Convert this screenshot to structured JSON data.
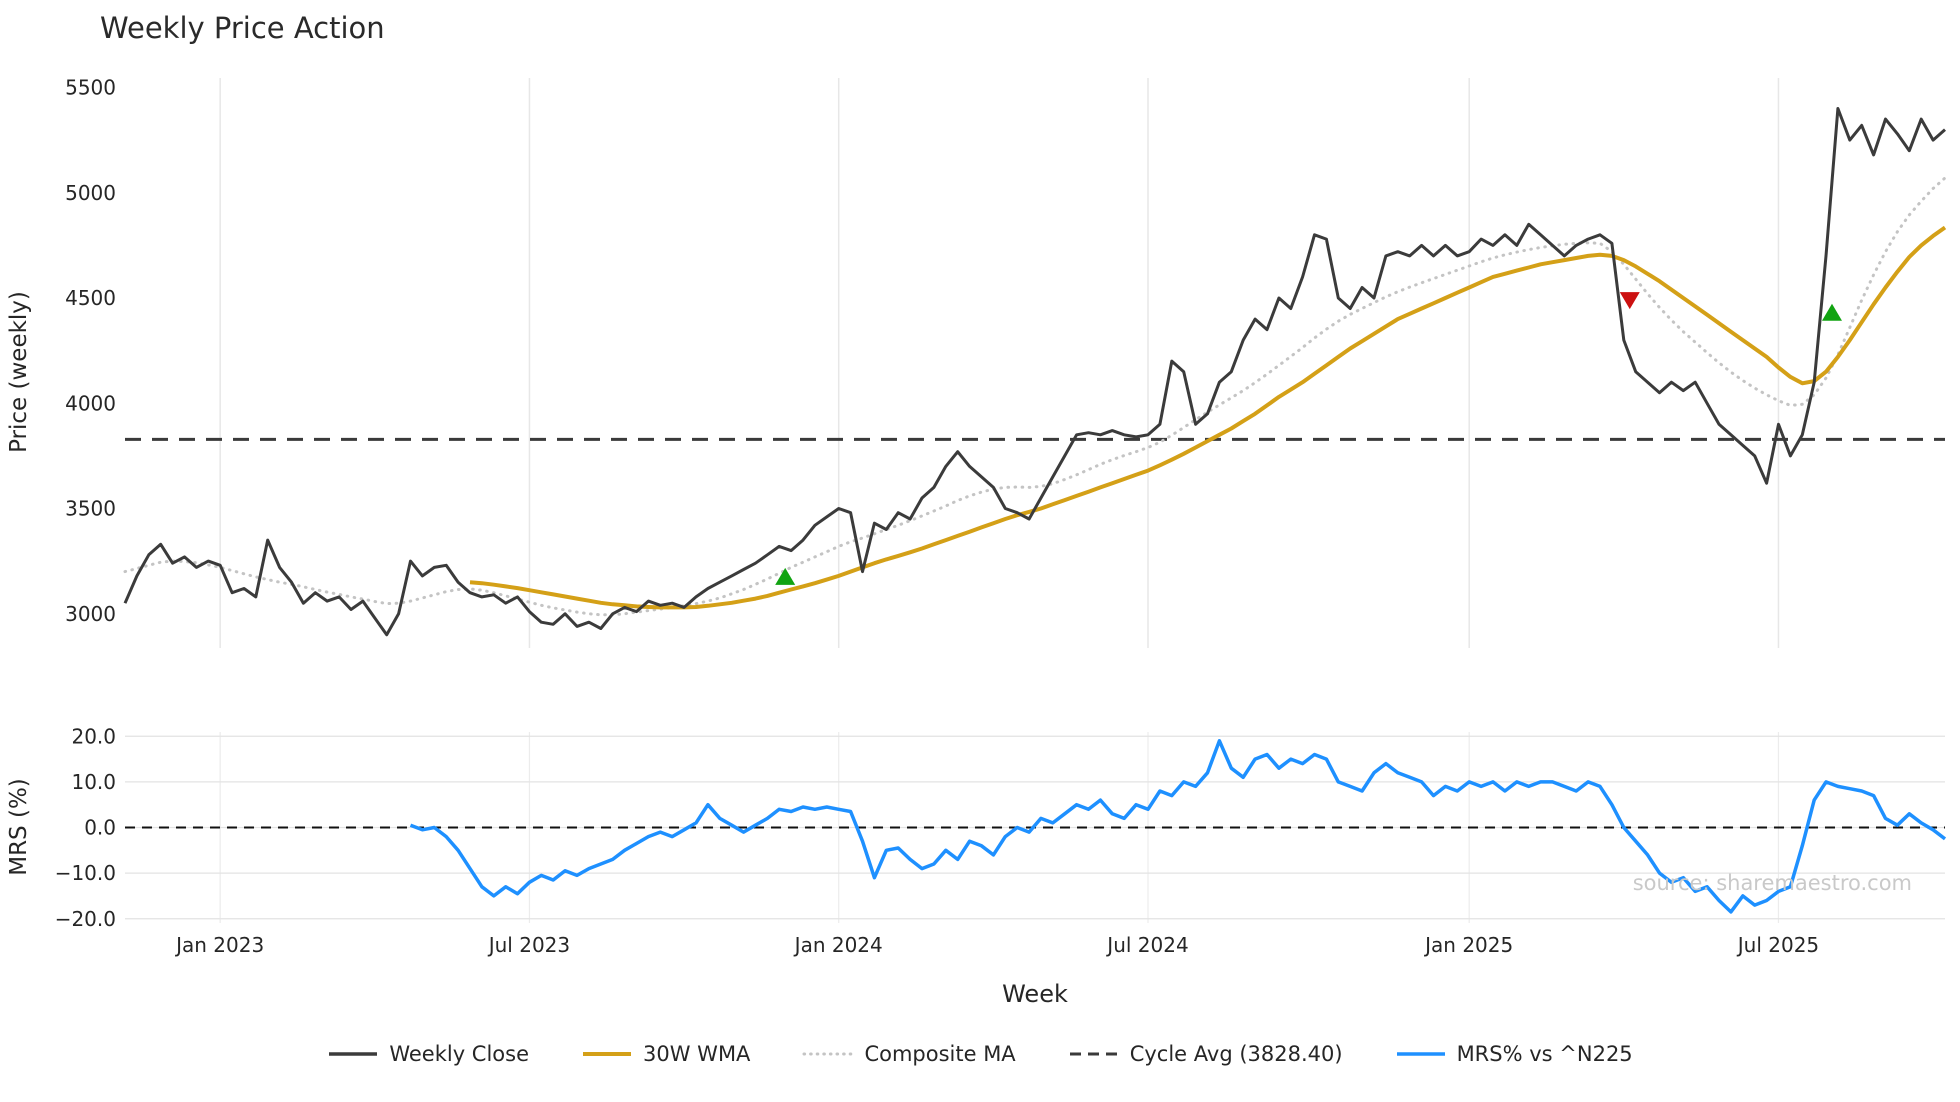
{
  "title": "Weekly Price Action",
  "watermark": "source: sharemaestro.com",
  "axes": {
    "price_label": "Price (weekly)",
    "mrs_label": "MRS (%)",
    "x_label": "Week"
  },
  "legend": {
    "items": [
      {
        "label": "Weekly Close",
        "color": "#3b3b3b",
        "dash": "solid",
        "width": 3.5
      },
      {
        "label": "30W WMA",
        "color": "#d4a017",
        "dash": "solid",
        "width": 4
      },
      {
        "label": "Composite MA",
        "color": "#c4c4c4",
        "dash": "dotted",
        "width": 3
      },
      {
        "label": "Cycle Avg (3828.40)",
        "color": "#3a3a3a",
        "dash": "dashed",
        "width": 3
      },
      {
        "label": "MRS% vs ^N225",
        "color": "#1e90ff",
        "dash": "solid",
        "width": 3.5
      }
    ]
  },
  "chart_data": {
    "type": "line",
    "title": "Weekly Price Action",
    "xlabel": "Week",
    "x_unit": "week_index",
    "x_range_weeks": [
      0,
      153
    ],
    "grid": true,
    "legend_position": "bottom-center",
    "panels": [
      {
        "id": "price",
        "ylabel": "Price (weekly)",
        "ylim": [
          2900,
          5500
        ],
        "yticks": [
          5500,
          5000,
          4500,
          4000,
          3500,
          3000
        ]
      },
      {
        "id": "mrs",
        "ylabel": "MRS (%)",
        "ylim": [
          -20,
          20
        ]
      }
    ],
    "x_ticks": [
      {
        "week": 8,
        "label": "Jan 2023"
      },
      {
        "week": 34,
        "label": "Jul 2023"
      },
      {
        "week": 60,
        "label": "Jan 2024"
      },
      {
        "week": 86,
        "label": "Jul 2024"
      },
      {
        "week": 113,
        "label": "Jan 2025"
      },
      {
        "week": 139,
        "label": "Jul 2025"
      }
    ],
    "price_axis": {
      "ticks": [
        5500,
        5000,
        4500,
        4000,
        3500,
        3000
      ]
    },
    "mrs_axis": {
      "ticks": [
        {
          "value": 20,
          "label": "20.0"
        },
        {
          "value": 10,
          "label": "10.0"
        },
        {
          "value": 0,
          "label": "0.0"
        },
        {
          "value": -10,
          "label": "−10.0"
        },
        {
          "value": -20,
          "label": "−20.0"
        }
      ]
    },
    "reference_lines": [
      {
        "panel": "price",
        "value": 3828.4,
        "label": "Cycle Avg (3828.40)",
        "color": "#3a3a3a",
        "dash": "16 11",
        "width": 3,
        "name": "cycle-avg"
      },
      {
        "panel": "mrs",
        "value": 0,
        "label": "",
        "color": "#111111",
        "dash": "10 7",
        "width": 2,
        "name": "mrs-zero"
      }
    ],
    "markers": [
      {
        "week": 55.5,
        "value": 3175,
        "shape": "triangle-up",
        "color": "#11a311",
        "name": "buy-signal-1"
      },
      {
        "week": 126.5,
        "value": 4490,
        "shape": "triangle-down",
        "color": "#cc1111",
        "name": "sell-signal-1"
      },
      {
        "week": 143.5,
        "value": 4430,
        "shape": "triangle-up",
        "color": "#11a311",
        "name": "buy-signal-2"
      }
    ],
    "series": [
      {
        "name": "Weekly Close",
        "panel": "price",
        "color": "#3b3b3b",
        "style": "solid",
        "width": 3,
        "start_week": 0,
        "values": [
          3050,
          3180,
          3280,
          3330,
          3240,
          3270,
          3220,
          3250,
          3230,
          3100,
          3120,
          3080,
          3350,
          3220,
          3150,
          3050,
          3100,
          3060,
          3080,
          3020,
          3060,
          2980,
          2900,
          3000,
          3250,
          3180,
          3220,
          3230,
          3150,
          3100,
          3080,
          3090,
          3050,
          3080,
          3010,
          2960,
          2950,
          3000,
          2940,
          2960,
          2930,
          3000,
          3030,
          3010,
          3060,
          3040,
          3050,
          3030,
          3080,
          3120,
          3150,
          3180,
          3210,
          3240,
          3280,
          3320,
          3300,
          3350,
          3420,
          3460,
          3500,
          3480,
          3200,
          3430,
          3400,
          3480,
          3450,
          3550,
          3600,
          3700,
          3770,
          3700,
          3650,
          3600,
          3500,
          3480,
          3450,
          3550,
          3650,
          3750,
          3850,
          3860,
          3850,
          3870,
          3850,
          3840,
          3850,
          3900,
          4200,
          4150,
          3900,
          3950,
          4100,
          4150,
          4300,
          4400,
          4350,
          4500,
          4450,
          4600,
          4800,
          4780,
          4500,
          4450,
          4550,
          4500,
          4700,
          4720,
          4700,
          4750,
          4700,
          4750,
          4700,
          4720,
          4780,
          4750,
          4800,
          4750,
          4850,
          4800,
          4750,
          4700,
          4750,
          4780,
          4800,
          4760,
          4300,
          4150,
          4100,
          4050,
          4100,
          4060,
          4100,
          4000,
          3900,
          3850,
          3800,
          3750,
          3620,
          3900,
          3750,
          3850,
          4100,
          4700,
          5400,
          5250,
          5320,
          5180,
          5350,
          5280,
          5200,
          5350,
          5250,
          5300
        ]
      },
      {
        "name": "30W WMA",
        "panel": "price",
        "color": "#d4a017",
        "style": "solid",
        "width": 4,
        "start_week": 29,
        "values": [
          3150,
          3145,
          3138,
          3130,
          3122,
          3112,
          3102,
          3092,
          3082,
          3072,
          3062,
          3052,
          3045,
          3040,
          3035,
          3032,
          3030,
          3030,
          3030,
          3032,
          3038,
          3045,
          3052,
          3062,
          3072,
          3085,
          3100,
          3115,
          3130,
          3145,
          3162,
          3180,
          3200,
          3220,
          3240,
          3258,
          3275,
          3292,
          3310,
          3330,
          3350,
          3370,
          3390,
          3410,
          3430,
          3450,
          3468,
          3484,
          3500,
          3520,
          3540,
          3560,
          3580,
          3600,
          3620,
          3640,
          3660,
          3680,
          3705,
          3732,
          3760,
          3790,
          3820,
          3850,
          3880,
          3915,
          3950,
          3990,
          4030,
          4065,
          4100,
          4140,
          4180,
          4220,
          4260,
          4295,
          4330,
          4365,
          4400,
          4425,
          4450,
          4475,
          4500,
          4525,
          4550,
          4575,
          4600,
          4615,
          4630,
          4645,
          4660,
          4670,
          4680,
          4690,
          4700,
          4705,
          4700,
          4680,
          4650,
          4615,
          4580,
          4540,
          4500,
          4460,
          4420,
          4380,
          4340,
          4300,
          4260,
          4220,
          4170,
          4125,
          4095,
          4105,
          4150,
          4220,
          4300,
          4385,
          4470,
          4550,
          4625,
          4695,
          4750,
          4795,
          4835
        ]
      },
      {
        "name": "Composite MA",
        "panel": "price",
        "color": "#c4c4c4",
        "style": "dotted",
        "width": 3,
        "start_week": 0,
        "values": [
          3200,
          3215,
          3230,
          3245,
          3250,
          3248,
          3242,
          3232,
          3220,
          3205,
          3190,
          3175,
          3162,
          3150,
          3140,
          3128,
          3115,
          3103,
          3092,
          3080,
          3070,
          3058,
          3048,
          3050,
          3060,
          3075,
          3090,
          3105,
          3115,
          3118,
          3112,
          3100,
          3085,
          3070,
          3055,
          3040,
          3028,
          3018,
          3008,
          3000,
          2995,
          2995,
          3000,
          3008,
          3015,
          3022,
          3030,
          3038,
          3048,
          3060,
          3075,
          3095,
          3115,
          3140,
          3165,
          3192,
          3220,
          3245,
          3270,
          3295,
          3320,
          3342,
          3360,
          3380,
          3400,
          3420,
          3442,
          3465,
          3488,
          3512,
          3538,
          3560,
          3578,
          3592,
          3600,
          3602,
          3600,
          3605,
          3618,
          3638,
          3660,
          3685,
          3710,
          3732,
          3752,
          3770,
          3790,
          3815,
          3848,
          3885,
          3922,
          3958,
          3992,
          4026,
          4060,
          4098,
          4138,
          4180,
          4222,
          4265,
          4310,
          4352,
          4390,
          4422,
          4450,
          4478,
          4505,
          4530,
          4552,
          4572,
          4592,
          4612,
          4632,
          4652,
          4672,
          4690,
          4705,
          4718,
          4730,
          4740,
          4748,
          4755,
          4760,
          4762,
          4760,
          4720,
          4660,
          4590,
          4520,
          4455,
          4395,
          4340,
          4290,
          4240,
          4192,
          4148,
          4108,
          4072,
          4040,
          4012,
          3990,
          3995,
          4040,
          4120,
          4230,
          4360,
          4490,
          4610,
          4720,
          4815,
          4895,
          4960,
          5020,
          5070
        ]
      },
      {
        "name": "MRS% vs ^N225",
        "panel": "mrs",
        "color": "#1e90ff",
        "style": "solid",
        "width": 3.5,
        "start_week": 24,
        "values": [
          0.5,
          -0.5,
          0,
          -2,
          -5,
          -9,
          -13,
          -15,
          -13,
          -14.5,
          -12,
          -10.5,
          -11.5,
          -9.5,
          -10.5,
          -9,
          -8,
          -7,
          -5,
          -3.5,
          -2,
          -1,
          -2,
          -0.5,
          1,
          5,
          2,
          0.5,
          -1,
          0.5,
          2,
          4,
          3.5,
          4.5,
          4,
          4.5,
          4,
          3.5,
          -3,
          -11,
          -5,
          -4.5,
          -7,
          -9,
          -8,
          -5,
          -7,
          -3,
          -4,
          -6,
          -2,
          0,
          -1,
          2,
          1,
          3,
          5,
          4,
          6,
          3,
          2,
          5,
          4,
          8,
          7,
          10,
          9,
          12,
          19,
          13,
          11,
          15,
          16,
          13,
          15,
          14,
          16,
          15,
          10,
          9,
          8,
          12,
          14,
          12,
          11,
          10,
          7,
          9,
          8,
          10,
          9,
          10,
          8,
          10,
          9,
          10,
          10,
          9,
          8,
          10,
          9,
          5,
          0,
          -3,
          -6,
          -10,
          -12,
          -11,
          -14,
          -13,
          -16,
          -18.5,
          -15,
          -17,
          -16,
          -14,
          -13,
          -4,
          6,
          10,
          9,
          8.5,
          8,
          7,
          2,
          0.5,
          3,
          1,
          -0.5,
          -2.5
        ]
      }
    ]
  }
}
